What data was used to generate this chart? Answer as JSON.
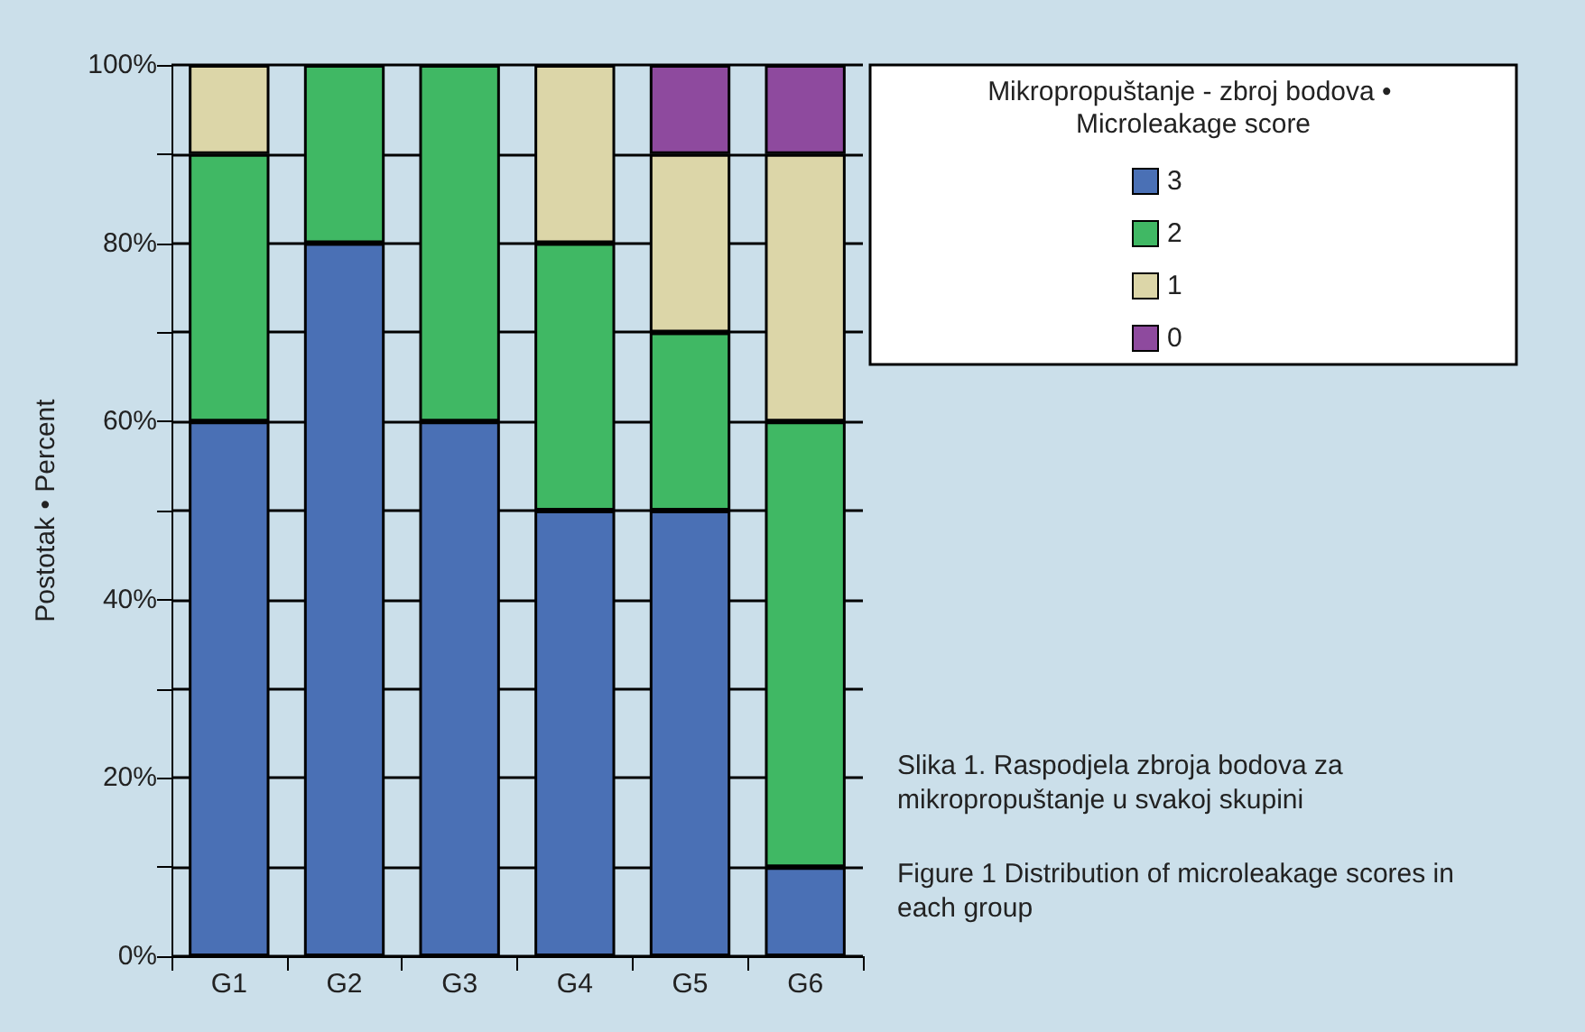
{
  "chart_data": {
    "type": "bar",
    "stacked": true,
    "ylabel": "Postotak • Percent",
    "legend_title": "Mikropropuštanje - zbroj bodova • Microleakage score",
    "legend": "top right",
    "grid": "y",
    "categories": [
      "G1",
      "G2",
      "G3",
      "G4",
      "G5",
      "G6"
    ],
    "series": [
      {
        "name": "3",
        "color": "#4a70b5",
        "values": [
          60,
          80,
          60,
          50,
          50,
          10
        ]
      },
      {
        "name": "2",
        "color": "#40b864",
        "values": [
          30,
          20,
          40,
          30,
          20,
          50
        ]
      },
      {
        "name": "1",
        "color": "#dcd6a8",
        "values": [
          10,
          0,
          0,
          20,
          20,
          30
        ]
      },
      {
        "name": "0",
        "color": "#8e4a9e",
        "values": [
          0,
          0,
          0,
          0,
          10,
          10
        ]
      }
    ],
    "ylim": [
      0,
      100
    ],
    "yticks": [
      {
        "value": 0,
        "label": "0%"
      },
      {
        "value": 10,
        "label": null
      },
      {
        "value": 20,
        "label": "20%"
      },
      {
        "value": 30,
        "label": null
      },
      {
        "value": 40,
        "label": "40%"
      },
      {
        "value": 50,
        "label": null
      },
      {
        "value": 60,
        "label": "60%"
      },
      {
        "value": 70,
        "label": null
      },
      {
        "value": 80,
        "label": "80%"
      },
      {
        "value": 90,
        "label": null
      },
      {
        "value": 100,
        "label": "100%"
      }
    ],
    "annotations": [
      "Slika 1. Raspodjela zbroja bodova za mikropropuštanje u svakoj skupini",
      "Figure 1 Distribution of microleakage scores in each group"
    ]
  }
}
